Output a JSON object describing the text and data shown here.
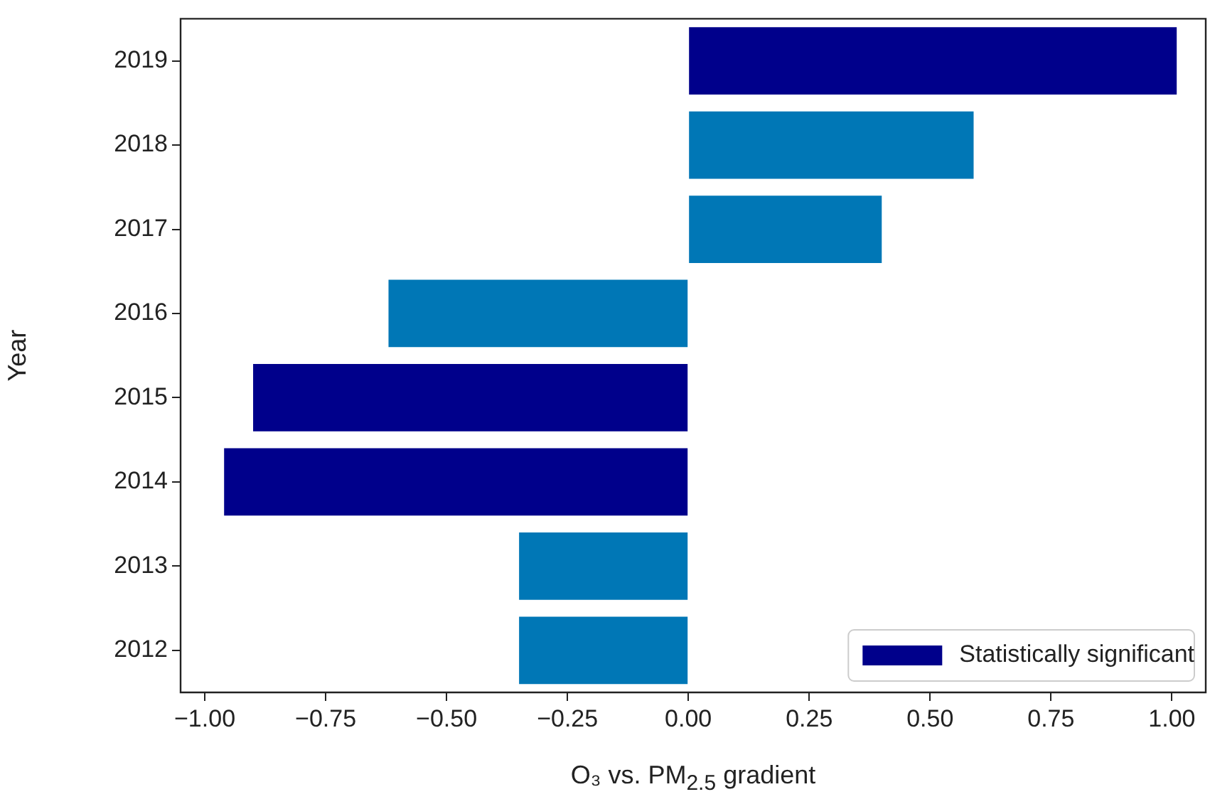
{
  "chart_data": {
    "type": "bar",
    "orientation": "horizontal",
    "ylabel": "Year",
    "xlabel": "O₃ vs. PM$_{2.5}$ gradient",
    "categories": [
      "2019",
      "2018",
      "2017",
      "2016",
      "2015",
      "2014",
      "2013",
      "2012"
    ],
    "series": [
      {
        "name": "Statistically significant",
        "color": "#00008b",
        "values": [
          1.01,
          null,
          null,
          null,
          -0.9,
          -0.96,
          null,
          null
        ]
      },
      {
        "color": "#0077b6",
        "values": [
          null,
          0.59,
          0.4,
          -0.62,
          null,
          null,
          -0.35,
          -0.35
        ]
      }
    ],
    "xlim": [
      -1.05,
      1.07
    ],
    "xticks": [
      {
        "value": -1,
        "label": "−1.00"
      },
      {
        "value": -0.75,
        "label": "−0.75"
      },
      {
        "value": -0.5,
        "label": "−0.50"
      },
      {
        "value": -0.25,
        "label": "−0.25"
      },
      {
        "value": 0,
        "label": "0.00"
      },
      {
        "value": 0.25,
        "label": "0.25"
      },
      {
        "value": 0.5,
        "label": "0.50"
      },
      {
        "value": 0.75,
        "label": "0.75"
      },
      {
        "value": 1,
        "label": "1.00"
      }
    ],
    "legend": "bottom right",
    "grid": false
  }
}
